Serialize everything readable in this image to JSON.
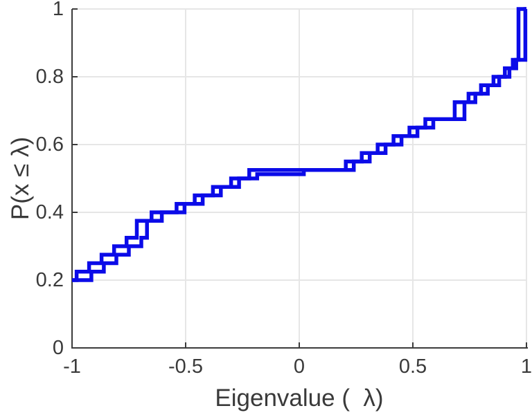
{
  "figure": {
    "xlabel": "Eigenvalue (  λ)",
    "ylabel": "P(x ≤ λ)",
    "x_ticks": [
      {
        "value": -1,
        "label": "-1"
      },
      {
        "value": -0.5,
        "label": "-0.5"
      },
      {
        "value": 0,
        "label": "0"
      },
      {
        "value": 0.5,
        "label": "0.5"
      },
      {
        "value": 1,
        "label": "1"
      }
    ],
    "y_ticks": [
      {
        "value": 0,
        "label": "0"
      },
      {
        "value": 0.2,
        "label": "0.2"
      },
      {
        "value": 0.4,
        "label": "0.4"
      },
      {
        "value": 0.6,
        "label": "0.6"
      },
      {
        "value": 0.8,
        "label": "0.8"
      },
      {
        "value": 1,
        "label": "1"
      }
    ],
    "colors": {
      "line": "#0b0be8",
      "axis": "#3c3c3c",
      "grid": "#e6e6e6",
      "text": "#3a3a3a",
      "background": "#ffffff"
    }
  },
  "chart_data": {
    "type": "line",
    "subtype": "empirical_cdf_step",
    "title": "",
    "xlabel": "Eigenvalue ( λ)",
    "ylabel": "P(x ≤ λ)",
    "xlim": [
      -1,
      1
    ],
    "ylim": [
      0,
      1
    ],
    "grid": true,
    "legend": null,
    "series": [
      {
        "name": "ecdf-1",
        "color": "#0b0be8",
        "points": [
          [
            -1.0,
            0.2
          ],
          [
            -0.98,
            0.225
          ],
          [
            -0.925,
            0.25
          ],
          [
            -0.87,
            0.275
          ],
          [
            -0.815,
            0.3
          ],
          [
            -0.76,
            0.325
          ],
          [
            -0.715,
            0.35
          ],
          [
            -0.715,
            0.375
          ],
          [
            -0.65,
            0.4
          ],
          [
            -0.54,
            0.425
          ],
          [
            -0.46,
            0.45
          ],
          [
            -0.38,
            0.475
          ],
          [
            -0.3,
            0.5
          ],
          [
            -0.22,
            0.525
          ],
          [
            0.205,
            0.55
          ],
          [
            0.275,
            0.575
          ],
          [
            0.345,
            0.6
          ],
          [
            0.415,
            0.625
          ],
          [
            0.485,
            0.65
          ],
          [
            0.555,
            0.675
          ],
          [
            0.684,
            0.7
          ],
          [
            0.684,
            0.725
          ],
          [
            0.745,
            0.75
          ],
          [
            0.8,
            0.775
          ],
          [
            0.855,
            0.8
          ],
          [
            0.905,
            0.825
          ],
          [
            0.94,
            0.85
          ],
          [
            0.965,
            0.875
          ],
          [
            0.965,
            0.9
          ],
          [
            0.965,
            0.925
          ],
          [
            0.965,
            0.95
          ],
          [
            0.965,
            0.975
          ],
          [
            0.965,
            1.0
          ],
          [
            1.0,
            1.0
          ]
        ]
      },
      {
        "name": "ecdf-2",
        "color": "#0b0be8",
        "points": [
          [
            -1.0,
            0.2
          ],
          [
            -0.915,
            0.225
          ],
          [
            -0.86,
            0.25
          ],
          [
            -0.805,
            0.275
          ],
          [
            -0.75,
            0.3
          ],
          [
            -0.695,
            0.325
          ],
          [
            -0.67,
            0.35
          ],
          [
            -0.67,
            0.375
          ],
          [
            -0.605,
            0.4
          ],
          [
            -0.505,
            0.425
          ],
          [
            -0.425,
            0.45
          ],
          [
            -0.345,
            0.475
          ],
          [
            -0.265,
            0.5
          ],
          [
            -0.185,
            0.5125
          ],
          [
            0.02,
            0.525
          ],
          [
            0.24,
            0.55
          ],
          [
            0.31,
            0.575
          ],
          [
            0.38,
            0.6
          ],
          [
            0.45,
            0.625
          ],
          [
            0.52,
            0.65
          ],
          [
            0.59,
            0.675
          ],
          [
            0.727,
            0.7
          ],
          [
            0.727,
            0.725
          ],
          [
            0.775,
            0.75
          ],
          [
            0.83,
            0.775
          ],
          [
            0.88,
            0.8
          ],
          [
            0.925,
            0.825
          ],
          [
            0.955,
            0.85
          ],
          [
            0.995,
            0.875
          ],
          [
            0.995,
            0.9
          ],
          [
            0.995,
            0.925
          ],
          [
            0.995,
            0.95
          ],
          [
            0.995,
            0.975
          ],
          [
            0.995,
            1.0
          ],
          [
            1.0,
            1.0
          ]
        ]
      }
    ]
  },
  "layout_meta": {
    "note": "step plot, grid on, box off, ticks inward"
  }
}
